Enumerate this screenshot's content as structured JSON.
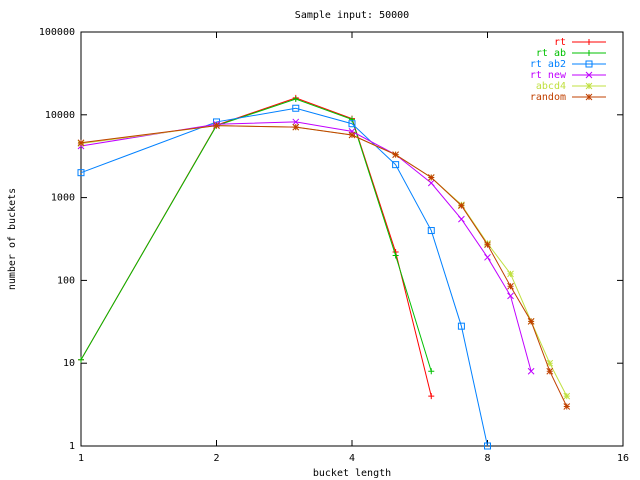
{
  "chart_data": {
    "type": "line",
    "title": "Sample input: 50000",
    "x_label": "bucket length",
    "y_label": "number of buckets",
    "xlog": true,
    "ylog": true,
    "xlim": [
      1,
      16
    ],
    "ylim": [
      1,
      100000
    ],
    "xticks": [
      1,
      2,
      4,
      8,
      16
    ],
    "yticks": [
      1,
      10,
      100,
      1000,
      10000,
      100000
    ],
    "legend": "top-right",
    "x": [
      1,
      2,
      3,
      4,
      5,
      6,
      7,
      8,
      9,
      10,
      11,
      12
    ],
    "series": [
      {
        "name": "rt",
        "color": "#ff0000",
        "marker": "plus",
        "values": [
          11,
          7500,
          16000,
          9000,
          220,
          4,
          null,
          null,
          null,
          null,
          null,
          null
        ]
      },
      {
        "name": "rt ab",
        "color": "#00c000",
        "marker": "plus",
        "values": [
          11,
          7400,
          15500,
          8800,
          200,
          8,
          null,
          null,
          null,
          null,
          null,
          null
        ]
      },
      {
        "name": "rt ab2",
        "color": "#0080ff",
        "marker": "square",
        "values": [
          2000,
          8200,
          12000,
          7800,
          2500,
          400,
          28,
          1,
          null,
          null,
          null,
          null
        ]
      },
      {
        "name": "rt new",
        "color": "#c000ff",
        "marker": "cross",
        "values": [
          4200,
          7700,
          8200,
          6300,
          3300,
          1500,
          550,
          190,
          65,
          8,
          null,
          null
        ]
      },
      {
        "name": "abcd4",
        "color": "#c0e040",
        "marker": "star",
        "values": [
          4500,
          7400,
          7100,
          5700,
          3300,
          1750,
          820,
          280,
          120,
          32,
          10,
          4
        ]
      },
      {
        "name": "random",
        "color": "#c04000",
        "marker": "star",
        "values": [
          4600,
          7400,
          7100,
          5700,
          3300,
          1750,
          800,
          270,
          85,
          32,
          8,
          3
        ]
      }
    ]
  }
}
